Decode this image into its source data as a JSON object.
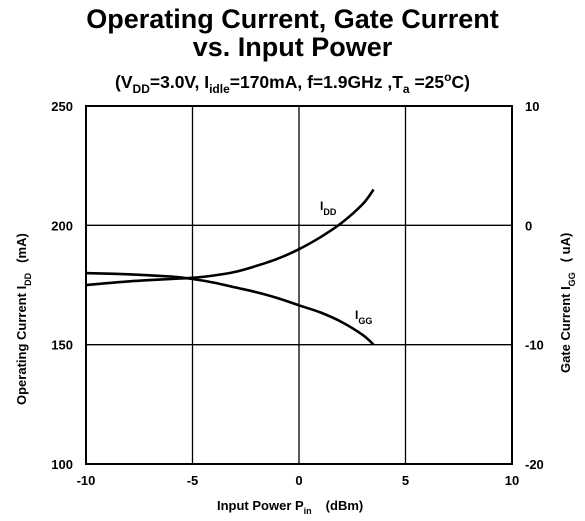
{
  "chart_data": {
    "type": "line",
    "title_line1": "Operating Current, Gate Current",
    "title_line2": "vs. Input Power",
    "conditions": {
      "open": "(V",
      "vdd_sub": "DD",
      "mid1": "=3.0V, I",
      "idle_sub": "idle",
      "mid2": "=170mA, f=1.9GHz ,T",
      "ta_sub": "a",
      "mid3": " =25",
      "deg": "o",
      "close": "C)"
    },
    "xlabel": {
      "main": "Input Power  P",
      "sub": "in",
      "unit": "(dBm)"
    },
    "ylabel_left": {
      "main": "Operating Current   I",
      "sub": "DD",
      "unit": "(mA)"
    },
    "ylabel_right": {
      "main": "Gate Current   I",
      "sub": "GG",
      "unit": "( uA)"
    },
    "xlim": [
      -10,
      10
    ],
    "ylim_left": [
      100,
      250
    ],
    "ylim_right": [
      -20,
      10
    ],
    "x_ticks": [
      "-10",
      "-5",
      "0",
      "5",
      "10"
    ],
    "y_left_ticks": [
      "100",
      "150",
      "200",
      "250"
    ],
    "y_right_ticks": [
      "-20",
      "-10",
      "0",
      "10"
    ],
    "grid": true,
    "series": [
      {
        "name": "I",
        "sub": "DD",
        "axis": "left",
        "x": [
          -10,
          -8,
          -6,
          -5,
          -4,
          -3,
          -2,
          -1,
          0,
          1,
          2,
          3,
          3.5
        ],
        "y": [
          175,
          176.5,
          177.5,
          178,
          179,
          180.5,
          183,
          186,
          190,
          195,
          201,
          209,
          215
        ]
      },
      {
        "name": "I",
        "sub": "GG",
        "axis": "right",
        "x": [
          -10,
          -8,
          -6,
          -5,
          -4,
          -3,
          -2,
          -1,
          0,
          1,
          2,
          3,
          3.5
        ],
        "y": [
          -4,
          -4.1,
          -4.3,
          -4.5,
          -4.8,
          -5.2,
          -5.6,
          -6.1,
          -6.7,
          -7.3,
          -8.1,
          -9.2,
          -10
        ]
      }
    ]
  }
}
